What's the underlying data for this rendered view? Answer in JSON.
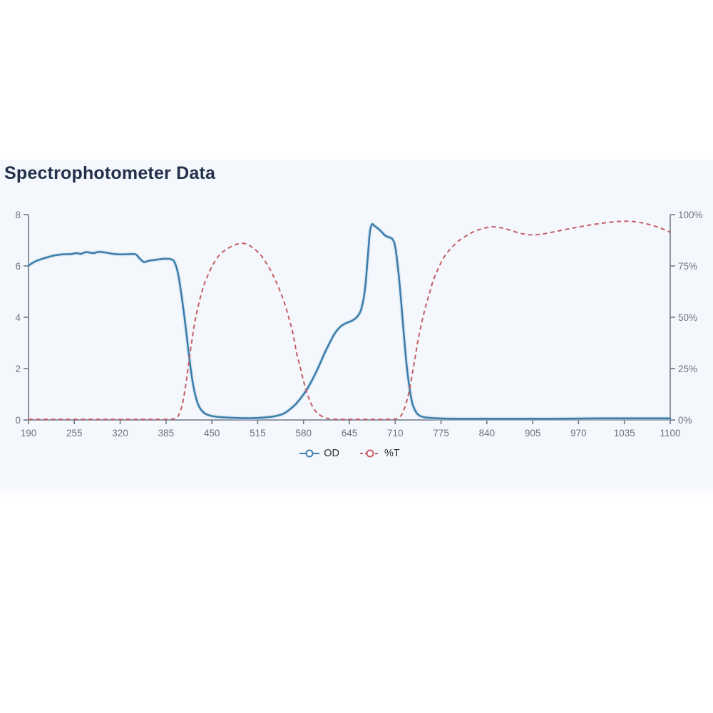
{
  "page": {
    "background": "#ffffff",
    "panel_background": "#f4f7fc"
  },
  "header": {
    "title": "Spectrophotometer Data"
  },
  "legend": [
    {
      "id": "od",
      "label": "OD",
      "color": "#3b7cab",
      "dashed": false
    },
    {
      "id": "pct-t",
      "label": "%T",
      "color": "#c45d63",
      "dashed": true
    }
  ],
  "chart_data": {
    "type": "line",
    "title": "Spectrophotometer Data",
    "xlabel": "",
    "grid": false,
    "legend_position": "bottom",
    "axis_color": "#6f7887",
    "tick_color": "#6b7480",
    "x_axis": {
      "min": 190,
      "max": 1100,
      "ticks": [
        190,
        255,
        320,
        385,
        450,
        515,
        580,
        645,
        710,
        775,
        840,
        905,
        970,
        1035,
        1100
      ],
      "tick_labels": [
        "190",
        "255",
        "320",
        "385",
        "450",
        "515",
        "580",
        "645",
        "710",
        "775",
        "840",
        "905",
        "970",
        "1035",
        "1100"
      ]
    },
    "y_axis_left": {
      "label": "OD",
      "min": 0,
      "max": 8,
      "ticks": [
        0,
        2,
        4,
        6,
        8
      ],
      "tick_labels": [
        "0",
        "2",
        "4",
        "6",
        "8"
      ]
    },
    "y_axis_right": {
      "label": "%T",
      "min": 0,
      "max": 100,
      "ticks": [
        0,
        25,
        50,
        75,
        100
      ],
      "tick_labels": [
        "0%",
        "25%",
        "50%",
        "75%",
        "100%"
      ]
    },
    "series": [
      {
        "name": "OD",
        "axis": "left",
        "style": "solid",
        "color": "#3b7cab",
        "halo_color": "#bdd7e7",
        "points": [
          [
            190,
            6.02
          ],
          [
            200,
            6.18
          ],
          [
            212,
            6.3
          ],
          [
            225,
            6.4
          ],
          [
            238,
            6.45
          ],
          [
            250,
            6.46
          ],
          [
            258,
            6.5
          ],
          [
            264,
            6.47
          ],
          [
            272,
            6.54
          ],
          [
            282,
            6.5
          ],
          [
            290,
            6.55
          ],
          [
            300,
            6.52
          ],
          [
            310,
            6.47
          ],
          [
            322,
            6.45
          ],
          [
            334,
            6.46
          ],
          [
            342,
            6.45
          ],
          [
            348,
            6.28
          ],
          [
            354,
            6.15
          ],
          [
            360,
            6.2
          ],
          [
            368,
            6.23
          ],
          [
            376,
            6.26
          ],
          [
            385,
            6.28
          ],
          [
            392,
            6.26
          ],
          [
            397,
            6.15
          ],
          [
            402,
            5.7
          ],
          [
            407,
            4.85
          ],
          [
            412,
            3.8
          ],
          [
            417,
            2.65
          ],
          [
            422,
            1.6
          ],
          [
            427,
            0.92
          ],
          [
            432,
            0.52
          ],
          [
            438,
            0.3
          ],
          [
            445,
            0.19
          ],
          [
            455,
            0.13
          ],
          [
            468,
            0.1
          ],
          [
            482,
            0.08
          ],
          [
            500,
            0.07
          ],
          [
            516,
            0.08
          ],
          [
            530,
            0.11
          ],
          [
            542,
            0.16
          ],
          [
            552,
            0.25
          ],
          [
            561,
            0.42
          ],
          [
            569,
            0.62
          ],
          [
            577,
            0.88
          ],
          [
            585,
            1.2
          ],
          [
            593,
            1.6
          ],
          [
            601,
            2.05
          ],
          [
            609,
            2.55
          ],
          [
            617,
            3.0
          ],
          [
            625,
            3.4
          ],
          [
            633,
            3.65
          ],
          [
            641,
            3.78
          ],
          [
            649,
            3.87
          ],
          [
            656,
            4.02
          ],
          [
            661,
            4.25
          ],
          [
            665,
            4.7
          ],
          [
            668,
            5.3
          ],
          [
            671,
            6.3
          ],
          [
            674,
            7.3
          ],
          [
            677,
            7.62
          ],
          [
            681,
            7.55
          ],
          [
            686,
            7.45
          ],
          [
            691,
            7.32
          ],
          [
            696,
            7.18
          ],
          [
            701,
            7.12
          ],
          [
            706,
            7.05
          ],
          [
            710,
            6.75
          ],
          [
            714,
            5.9
          ],
          [
            718,
            4.75
          ],
          [
            722,
            3.4
          ],
          [
            726,
            2.2
          ],
          [
            730,
            1.3
          ],
          [
            734,
            0.68
          ],
          [
            739,
            0.33
          ],
          [
            745,
            0.16
          ],
          [
            753,
            0.1
          ],
          [
            765,
            0.07
          ],
          [
            790,
            0.05
          ],
          [
            830,
            0.05
          ],
          [
            880,
            0.05
          ],
          [
            940,
            0.05
          ],
          [
            1000,
            0.06
          ],
          [
            1060,
            0.06
          ],
          [
            1100,
            0.06
          ]
        ]
      },
      {
        "name": "%T",
        "axis": "right",
        "style": "dashed",
        "color": "#c45d63",
        "points": [
          [
            190,
            0.3
          ],
          [
            240,
            0.3
          ],
          [
            290,
            0.3
          ],
          [
            340,
            0.3
          ],
          [
            380,
            0.3
          ],
          [
            393,
            0.4
          ],
          [
            400,
            1
          ],
          [
            405,
            4
          ],
          [
            409,
            9
          ],
          [
            413,
            17
          ],
          [
            417,
            27
          ],
          [
            421,
            37
          ],
          [
            425,
            46
          ],
          [
            429,
            53
          ],
          [
            434,
            60
          ],
          [
            439,
            66
          ],
          [
            445,
            71
          ],
          [
            452,
            76
          ],
          [
            460,
            80
          ],
          [
            468,
            82.5
          ],
          [
            476,
            84.2
          ],
          [
            484,
            85.4
          ],
          [
            491,
            86
          ],
          [
            498,
            85.8
          ],
          [
            505,
            84.6
          ],
          [
            512,
            82.8
          ],
          [
            520,
            80
          ],
          [
            528,
            76
          ],
          [
            536,
            71
          ],
          [
            544,
            65
          ],
          [
            552,
            58
          ],
          [
            559,
            50
          ],
          [
            565,
            42
          ],
          [
            570,
            33
          ],
          [
            575,
            26
          ],
          [
            580,
            19
          ],
          [
            585,
            13
          ],
          [
            590,
            8.5
          ],
          [
            595,
            5.2
          ],
          [
            600,
            3.2
          ],
          [
            606,
            1.8
          ],
          [
            612,
            0.9
          ],
          [
            620,
            0.45
          ],
          [
            632,
            0.3
          ],
          [
            660,
            0.3
          ],
          [
            690,
            0.3
          ],
          [
            708,
            0.4
          ],
          [
            714,
            1
          ],
          [
            719,
            2.5
          ],
          [
            723,
            5.5
          ],
          [
            727,
            10
          ],
          [
            731,
            16
          ],
          [
            735,
            24
          ],
          [
            739,
            32
          ],
          [
            743,
            40
          ],
          [
            748,
            48
          ],
          [
            753,
            55
          ],
          [
            758,
            61
          ],
          [
            764,
            68
          ],
          [
            770,
            73
          ],
          [
            777,
            78
          ],
          [
            785,
            82
          ],
          [
            793,
            85
          ],
          [
            801,
            87.5
          ],
          [
            810,
            89.5
          ],
          [
            820,
            91.5
          ],
          [
            830,
            92.8
          ],
          [
            840,
            93.7
          ],
          [
            848,
            94.1
          ],
          [
            856,
            93.8
          ],
          [
            865,
            93.2
          ],
          [
            875,
            92.2
          ],
          [
            885,
            91.1
          ],
          [
            895,
            90.4
          ],
          [
            905,
            90.1
          ],
          [
            915,
            90.4
          ],
          [
            925,
            90.9
          ],
          [
            938,
            91.8
          ],
          [
            952,
            92.8
          ],
          [
            966,
            93.7
          ],
          [
            980,
            94.6
          ],
          [
            995,
            95.4
          ],
          [
            1010,
            96.1
          ],
          [
            1025,
            96.6
          ],
          [
            1036,
            96.8
          ],
          [
            1048,
            96.6
          ],
          [
            1060,
            96.0
          ],
          [
            1072,
            95.0
          ],
          [
            1085,
            93.6
          ],
          [
            1095,
            92.2
          ],
          [
            1100,
            91.4
          ]
        ]
      }
    ]
  }
}
